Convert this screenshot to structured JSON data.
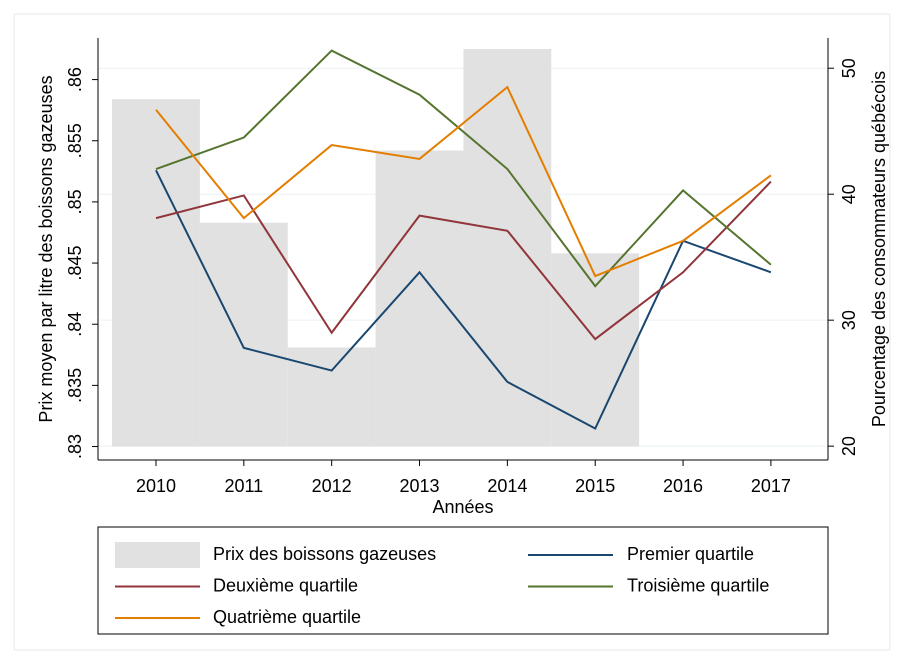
{
  "chart_data": {
    "type": "line",
    "x_label": "Années",
    "y_label": "Prix moyen par litre des boissons gazeuses",
    "y2_label": "Pourcentage des consommateurs québécois",
    "x": [
      2010,
      2011,
      2012,
      2013,
      2014,
      2015,
      2016,
      2017
    ],
    "xlim": [
      2009.34,
      2017.65
    ],
    "xticks": [
      2010,
      2011,
      2012,
      2013,
      2014,
      2015,
      2016,
      2017
    ],
    "ylim": [
      0.8289,
      0.8634
    ],
    "yticks": [
      {
        "value": 0.83,
        "label": ".83"
      },
      {
        "value": 0.835,
        "label": ".835"
      },
      {
        "value": 0.84,
        "label": ".84"
      },
      {
        "value": 0.845,
        "label": ".845"
      },
      {
        "value": 0.85,
        "label": ".85"
      },
      {
        "value": 0.855,
        "label": ".855"
      },
      {
        "value": 0.86,
        "label": ".86"
      }
    ],
    "y2lim": [
      18.9,
      52.4
    ],
    "y2ticks": [
      20,
      30,
      40,
      50
    ],
    "grid": true,
    "legend": "bottom",
    "series": [
      {
        "name": "Prix des boissons gazeuses",
        "type": "bar",
        "color": "#e1e1e1",
        "values": [
          0.8584,
          0.8483,
          0.8381,
          0.8542,
          0.8625,
          0.8458,
          null,
          null
        ]
      },
      {
        "name": "Premier quartile",
        "axis": "y2",
        "color": "#1a476f",
        "values": [
          41.9,
          27.8,
          26.0,
          33.8,
          25.1,
          21.4,
          36.3,
          33.8
        ]
      },
      {
        "name": "Deuxième quartile",
        "axis": "y2",
        "color": "#90353b",
        "values": [
          38.1,
          39.9,
          29.0,
          38.3,
          37.1,
          28.5,
          33.8,
          41.0
        ]
      },
      {
        "name": "Troisième quartile",
        "axis": "y2",
        "color": "#55752f",
        "values": [
          42.0,
          44.5,
          51.4,
          47.9,
          42.0,
          32.7,
          40.3,
          34.4
        ]
      },
      {
        "name": "Quatrième quartile",
        "axis": "y2",
        "color": "#e37e00",
        "values": [
          46.7,
          38.1,
          43.9,
          42.8,
          48.5,
          33.5,
          36.3,
          41.5
        ]
      }
    ]
  }
}
